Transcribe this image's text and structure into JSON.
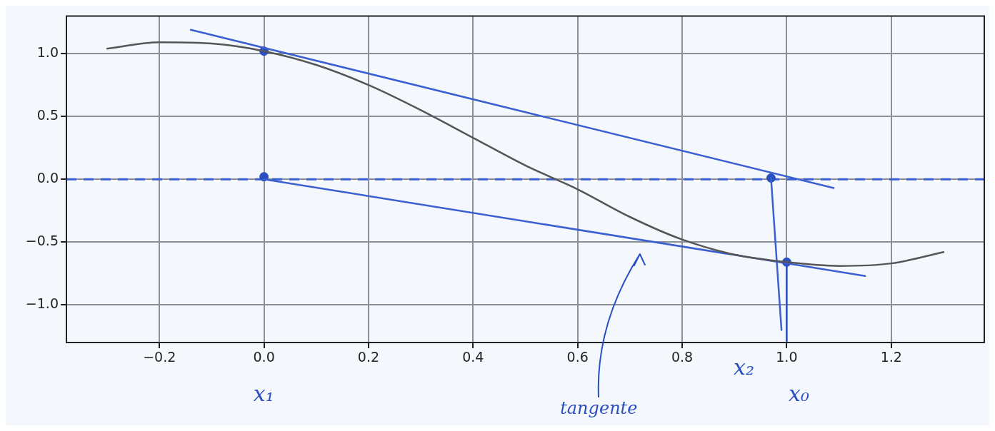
{
  "chart_data": {
    "type": "line",
    "xlim": [
      -0.378,
      1.378
    ],
    "ylim": [
      -1.3,
      1.3
    ],
    "xticks": [
      {
        "value": -0.2,
        "label": "−0.2"
      },
      {
        "value": 0,
        "label": "0.0"
      },
      0.2,
      0.4,
      0.6,
      0.8,
      {
        "value": 1,
        "label": "1.0"
      },
      1.2
    ],
    "yticks": [
      {
        "value": -1,
        "label": "−1.0"
      },
      {
        "value": -0.5,
        "label": "−0.5"
      },
      {
        "value": 0,
        "label": "0.0"
      },
      0.5,
      {
        "value": 1,
        "label": "1.0"
      }
    ],
    "grid": true,
    "marker": "none",
    "line_style": "solid",
    "series": [
      {
        "color": "#555555",
        "x": [
          -0.3,
          -0.2,
          -0.1,
          0,
          0.1,
          0.2,
          0.3,
          0.4,
          0.5,
          0.6,
          0.7,
          0.8,
          0.9,
          1.0,
          1.1,
          1.2,
          1.3
        ],
        "values": [
          1.04,
          1.09,
          1.08,
          1.02,
          0.91,
          0.75,
          0.55,
          0.33,
          0.11,
          -0.08,
          -0.3,
          -0.48,
          -0.6,
          -0.66,
          -0.69,
          -0.67,
          -0.58
        ]
      },
      {
        "color": "#3a5fd0",
        "x": [
          -0.14,
          1.09
        ],
        "values": [
          1.19,
          -0.07
        ]
      },
      {
        "color": "#3a5fd0",
        "x": [
          0,
          1.15
        ],
        "values": [
          0.0,
          -0.77
        ]
      },
      {
        "color": "#3a5fd0",
        "x": [
          0.97,
          0.99
        ],
        "values": [
          0.01,
          -1.2
        ]
      },
      {
        "color": "#2a4fc0",
        "x": [
          1.0,
          1.0
        ],
        "values": [
          -0.66,
          -1.3
        ]
      },
      {
        "type": "scatter",
        "color": "#2a4fc0",
        "marker": "circle",
        "x": [
          0,
          0,
          0.97,
          1.0
        ],
        "values": [
          1.02,
          0.02,
          0.01,
          -0.66
        ]
      }
    ],
    "ref_lines": [
      {
        "axis": "y",
        "value": 0,
        "color": "#3a5fd0",
        "line_style": "dashed"
      }
    ],
    "annotations": [
      "x₁",
      "x₂",
      "x₀",
      "tangente"
    ]
  }
}
